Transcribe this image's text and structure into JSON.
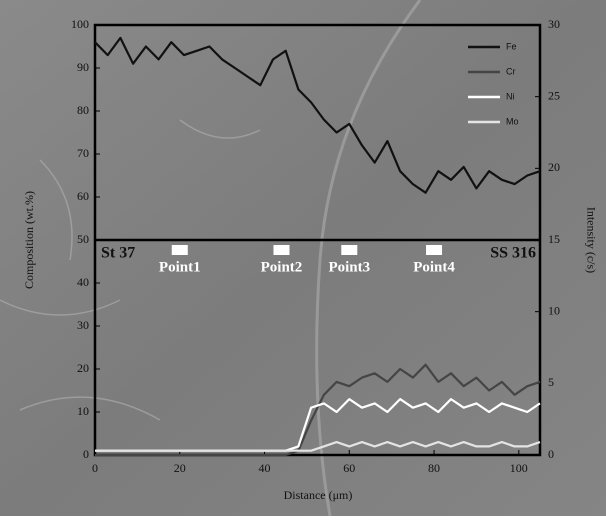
{
  "chart_data": {
    "type": "line",
    "xlabel": "Distance (μm)",
    "ylabel": "Composition (wt.%)",
    "y2label": "Intensity (c/s)",
    "xlim": [
      0,
      105
    ],
    "xticks": [
      0,
      20,
      40,
      60,
      80,
      100
    ],
    "ylim": [
      0,
      100
    ],
    "yticks": [
      0,
      10,
      20,
      30,
      40,
      50,
      60,
      70,
      80,
      90,
      100
    ],
    "y2lim": [
      0,
      30
    ],
    "y2ticks": [
      0,
      5,
      10,
      15,
      20,
      25,
      30
    ],
    "divider_y": 50,
    "x": [
      0,
      3,
      6,
      9,
      12,
      15,
      18,
      21,
      24,
      27,
      30,
      33,
      36,
      39,
      42,
      45,
      48,
      51,
      54,
      57,
      60,
      63,
      66,
      69,
      72,
      75,
      78,
      81,
      84,
      87,
      90,
      93,
      96,
      99,
      102,
      105
    ],
    "series": [
      {
        "name": "Fe",
        "color": "#111111",
        "values": [
          96,
          93,
          97,
          91,
          95,
          92,
          96,
          93,
          94,
          95,
          92,
          90,
          88,
          86,
          92,
          94,
          85,
          82,
          78,
          75,
          77,
          72,
          68,
          73,
          66,
          63,
          61,
          66,
          64,
          67,
          62,
          66,
          64,
          63,
          65,
          66
        ]
      },
      {
        "name": "Cr",
        "color": "#454545",
        "values": [
          0,
          0,
          0,
          0,
          0,
          0,
          0,
          0,
          0,
          0,
          0,
          0,
          0,
          0,
          0,
          0,
          1,
          8,
          14,
          17,
          16,
          18,
          19,
          17,
          20,
          18,
          21,
          17,
          19,
          16,
          18,
          15,
          17,
          14,
          16,
          17
        ]
      },
      {
        "name": "Ni",
        "color": "#ffffff",
        "values": [
          1,
          1,
          1,
          1,
          1,
          1,
          1,
          1,
          1,
          1,
          1,
          1,
          1,
          1,
          1,
          1,
          2,
          11,
          12,
          10,
          13,
          11,
          12,
          10,
          13,
          11,
          12,
          10,
          13,
          11,
          12,
          10,
          12,
          11,
          10,
          12
        ]
      },
      {
        "name": "Mo",
        "color": "#e4e4e4",
        "values": [
          1,
          1,
          1,
          1,
          1,
          1,
          1,
          1,
          1,
          1,
          1,
          1,
          1,
          1,
          1,
          1,
          1,
          1,
          2,
          3,
          2,
          3,
          2,
          3,
          2,
          3,
          2,
          3,
          2,
          3,
          2,
          2,
          3,
          2,
          2,
          3
        ]
      }
    ],
    "corner_labels": [
      "St 37",
      "SS 316"
    ],
    "annotations": [
      {
        "text": "Point1",
        "x": 20
      },
      {
        "text": "Point2",
        "x": 44
      },
      {
        "text": "Point3",
        "x": 60
      },
      {
        "text": "Point4",
        "x": 80
      }
    ]
  }
}
